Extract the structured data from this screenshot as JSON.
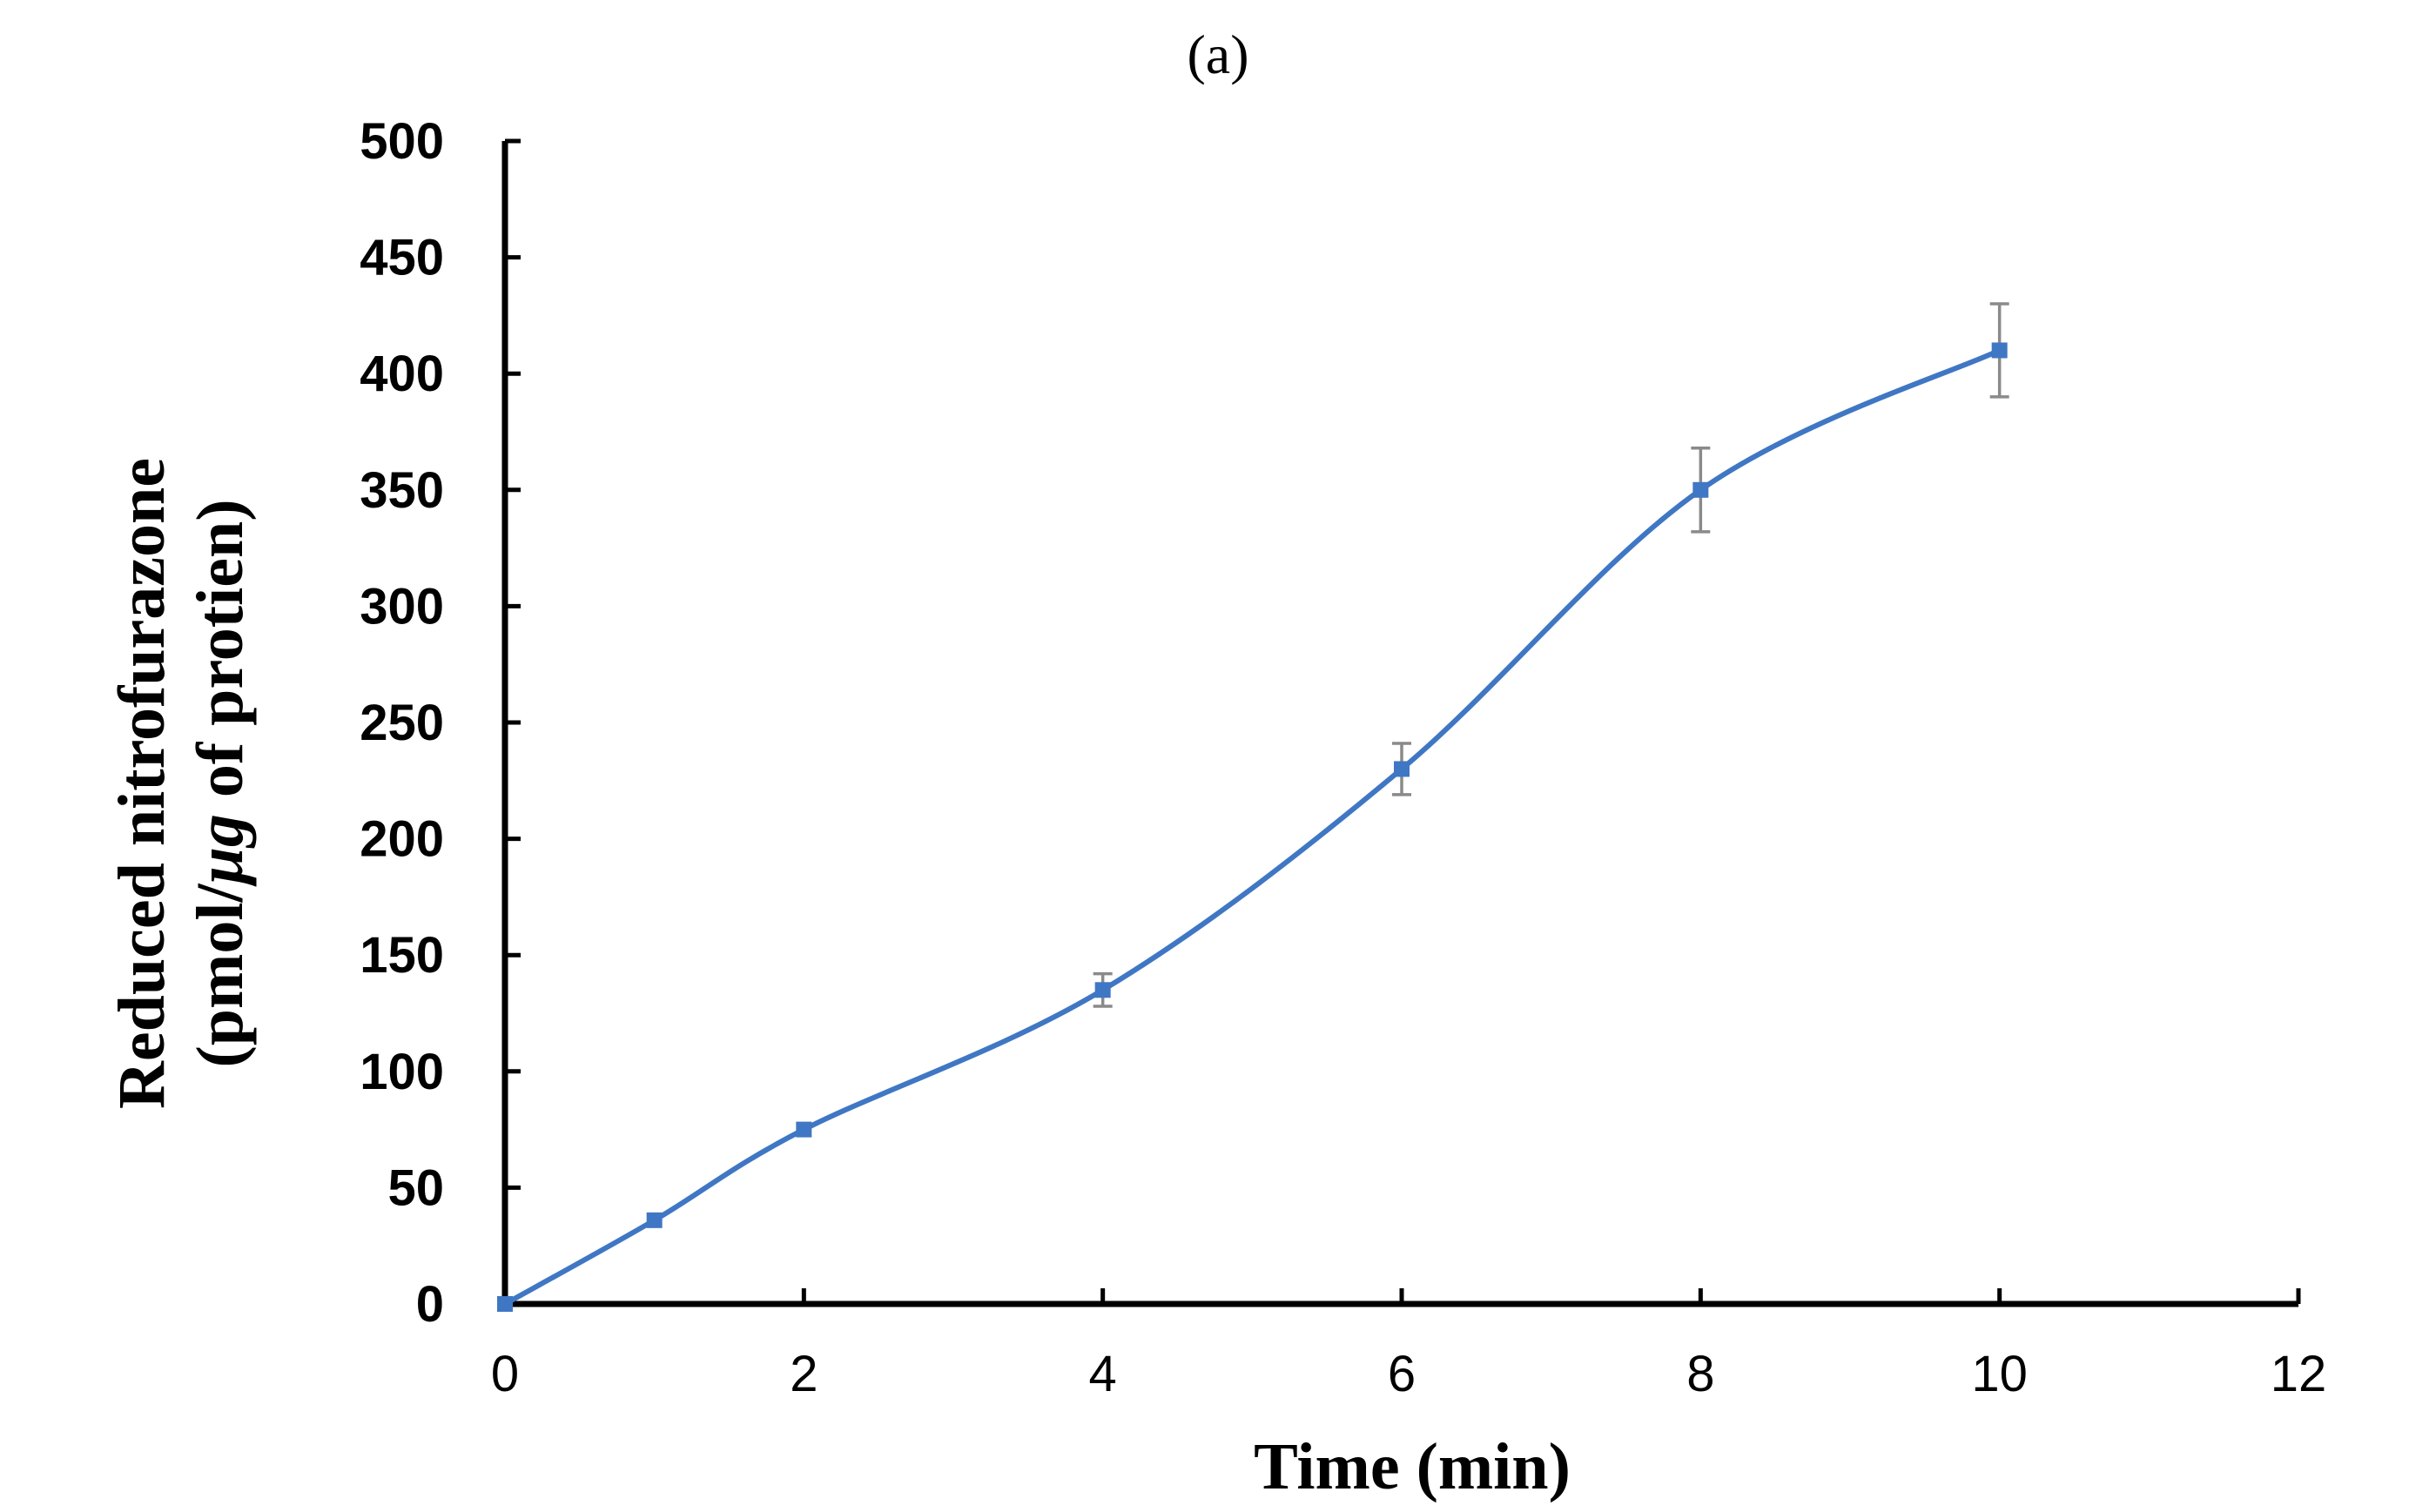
{
  "chart_data": {
    "type": "line",
    "panel_label": "(a)",
    "title": "",
    "xlabel": "Time (min)",
    "ylabel_line1": "Reduced nitrofurazone",
    "ylabel_line2_prefix": "(pmol/",
    "ylabel_line2_italic": "μg",
    "ylabel_line2_suffix": " of protien)",
    "xlim": [
      0,
      12
    ],
    "ylim": [
      0,
      500
    ],
    "x_ticks": [
      0,
      2,
      4,
      6,
      8,
      10,
      12
    ],
    "x_tick_labels": [
      "0",
      "2",
      "4",
      "6",
      "8",
      "10",
      "12"
    ],
    "y_ticks": [
      0,
      50,
      100,
      150,
      200,
      250,
      300,
      350,
      400,
      450,
      500
    ],
    "y_tick_labels": [
      "0",
      "50",
      "100",
      "150",
      "200",
      "250",
      "300",
      "350",
      "400",
      "450",
      "500"
    ],
    "grid": false,
    "legend": "none",
    "series": [
      {
        "color": "#3f77c4",
        "smooth": true,
        "x": [
          0,
          1,
          2,
          4,
          6,
          8,
          10
        ],
        "y": [
          0,
          36,
          75,
          135,
          230,
          350,
          410
        ],
        "error": [
          0,
          0,
          0,
          7,
          11,
          18,
          20
        ]
      }
    ],
    "error_bar_color": "#8a8a8a"
  }
}
